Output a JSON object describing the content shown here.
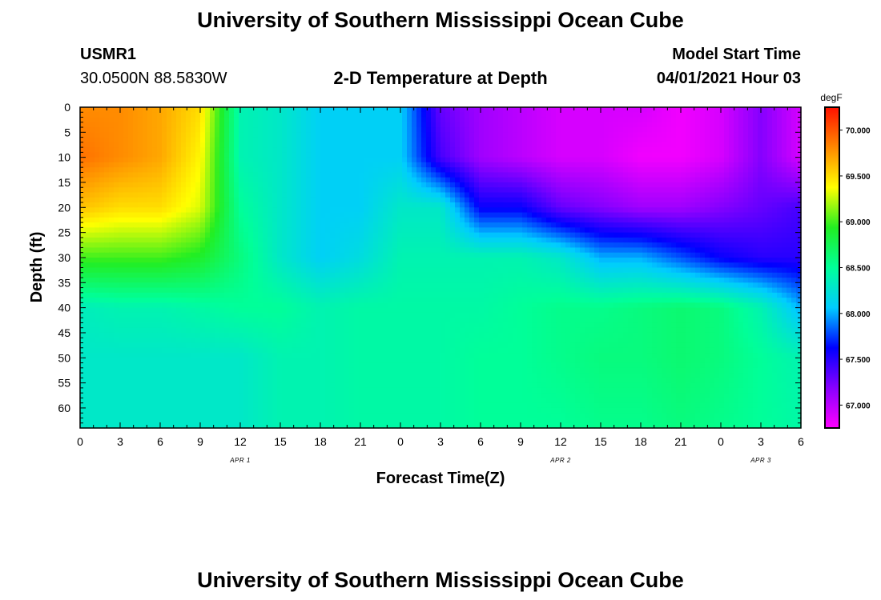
{
  "header": {
    "title": "University of Southern Mississippi Ocean Cube",
    "station": "USMR1",
    "coords": "30.0500N  88.5830W",
    "plot_title": "2-D Temperature at Depth",
    "model_start_label": "Model Start Time",
    "model_start_value": "04/01/2021 Hour 03"
  },
  "footer": {
    "title": "University of Southern Mississippi Ocean Cube"
  },
  "colors": {
    "axis": "#000000",
    "colorbar_stops": [
      "#ff00ff",
      "#8800ff",
      "#0000ff",
      "#00ccff",
      "#00ff99",
      "#22ee22",
      "#ffff00",
      "#ff8800",
      "#ff1100"
    ]
  },
  "chart_data": {
    "type": "heatmap",
    "title": "2-D Temperature at Depth",
    "xlabel": "Forecast Time(Z)",
    "ylabel": "Depth (ft)",
    "x_ticks": [
      "0",
      "3",
      "6",
      "9",
      "12",
      "15",
      "18",
      "21",
      "0",
      "3",
      "6",
      "9",
      "12",
      "15",
      "18",
      "21",
      "0",
      "3",
      "6"
    ],
    "x_range_hours": [
      0,
      54
    ],
    "date_labels": [
      {
        "label": "APR 1",
        "hour": 12
      },
      {
        "label": "APR 2",
        "hour": 36
      },
      {
        "label": "APR 3",
        "hour": 51
      }
    ],
    "y_ticks": [
      "0",
      "5",
      "10",
      "15",
      "20",
      "25",
      "30",
      "35",
      "40",
      "45",
      "50",
      "55",
      "60"
    ],
    "y_range": [
      0,
      64
    ],
    "y_inverted": true,
    "colorbar": {
      "unit": "degF",
      "range": [
        66.75,
        70.25
      ],
      "ticks": [
        "67.000",
        "67.500",
        "68.000",
        "68.500",
        "69.000",
        "69.500",
        "70.000"
      ]
    },
    "x_hours": [
      0,
      3,
      6,
      9,
      12,
      15,
      18,
      21,
      24,
      27,
      30,
      33,
      36,
      39,
      42,
      45,
      48,
      51,
      54
    ],
    "depths_ft": [
      0,
      10,
      20,
      30,
      40,
      50,
      64
    ],
    "temps_degF": [
      [
        69.8,
        69.8,
        69.7,
        69.5,
        68.4,
        68.3,
        68.1,
        68.1,
        68.1,
        67.3,
        67.1,
        67.0,
        66.9,
        66.9,
        66.9,
        66.8,
        66.9,
        67.2,
        66.9
      ],
      [
        69.9,
        69.8,
        69.7,
        69.4,
        68.4,
        68.3,
        68.1,
        68.1,
        68.1,
        67.4,
        67.1,
        67.0,
        66.9,
        66.9,
        66.8,
        66.8,
        66.9,
        67.2,
        66.9
      ],
      [
        69.6,
        69.5,
        69.5,
        69.3,
        68.5,
        68.3,
        68.1,
        68.1,
        68.3,
        68.3,
        67.6,
        67.6,
        67.3,
        67.2,
        67.1,
        67.1,
        67.2,
        67.3,
        67.4
      ],
      [
        69.0,
        69.0,
        69.0,
        68.9,
        68.6,
        68.3,
        68.1,
        68.2,
        68.4,
        68.4,
        68.4,
        68.4,
        68.3,
        68.0,
        68.0,
        67.8,
        67.6,
        67.5,
        67.5
      ],
      [
        68.35,
        68.4,
        68.4,
        68.45,
        68.5,
        68.5,
        68.4,
        68.45,
        68.45,
        68.45,
        68.45,
        68.5,
        68.55,
        68.55,
        68.6,
        68.65,
        68.6,
        68.4,
        68.0
      ],
      [
        68.3,
        68.3,
        68.3,
        68.3,
        68.3,
        68.4,
        68.4,
        68.45,
        68.45,
        68.45,
        68.5,
        68.5,
        68.55,
        68.6,
        68.6,
        68.65,
        68.6,
        68.5,
        68.4
      ],
      [
        68.3,
        68.3,
        68.3,
        68.3,
        68.3,
        68.4,
        68.4,
        68.45,
        68.45,
        68.45,
        68.5,
        68.5,
        68.5,
        68.55,
        68.55,
        68.6,
        68.55,
        68.5,
        68.45
      ]
    ]
  }
}
